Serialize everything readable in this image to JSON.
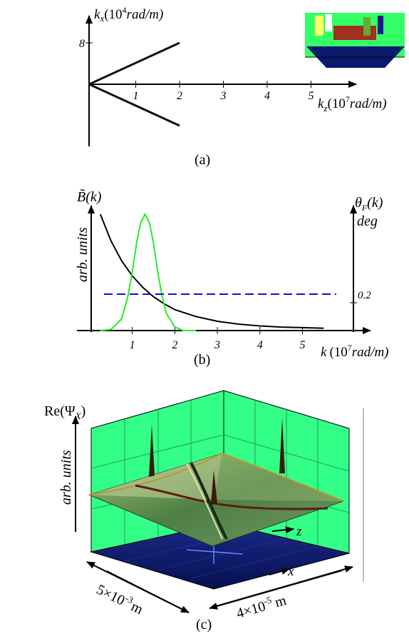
{
  "panel_a": {
    "y_axis_label_k": "k",
    "y_axis_label_sub": "x",
    "y_axis_label_unit_pre": "(10",
    "y_axis_label_exp": "4",
    "y_axis_label_unit_post": "rad/m)",
    "x_axis_label_k": "k",
    "x_axis_label_sub": "z",
    "x_axis_label_unit_pre": "(10",
    "x_axis_label_exp": "7",
    "x_axis_label_unit_post": "rad/m)",
    "y_tick": "8",
    "x_ticks": [
      "1",
      "2",
      "3",
      "4",
      "5"
    ],
    "caption": "(a)"
  },
  "panel_b": {
    "left_label_sym": "B̃(k)",
    "left_unit": "arb. units",
    "right_label_theta": "θ",
    "right_label_sub": "F",
    "right_label_arg": "(k)",
    "right_unit": "deg",
    "right_tick": "0.2",
    "x_ticks": [
      "1",
      "2",
      "3",
      "4",
      "5"
    ],
    "x_axis_label_k": "k",
    "x_axis_label_unit_pre": "(10",
    "x_axis_label_exp": "7",
    "x_axis_label_unit_post": "rad/m)",
    "caption": "(b)"
  },
  "panel_c": {
    "z_axis_label": "Re(Ψ",
    "z_axis_label_sub": "X",
    "z_axis_label_close": ")",
    "z_unit": "arb. units",
    "axis_z": "z",
    "axis_x": "x",
    "dim_left_mantissa": "5×10",
    "dim_left_exp": "-3",
    "dim_left_unit": "m",
    "dim_right_mantissa": "4×10",
    "dim_right_exp": "-5",
    "dim_right_unit": "m",
    "caption": "(c)"
  },
  "colors": {
    "wall": "#33ff88",
    "floor": "#0a1a6e",
    "surface": "#5b8a4a",
    "gaussian": "#22ee22",
    "dashed": "#1010cc"
  },
  "chart_data": [
    {
      "type": "line",
      "title": "",
      "xlabel": "k_z (10^7 rad/m)",
      "ylabel": "k_x (10^4 rad/m)",
      "xlim": [
        0,
        5.5
      ],
      "ylim": [
        -4.5,
        9.5
      ],
      "series": [
        {
          "x": [
            0,
            2
          ],
          "y": [
            0,
            8
          ]
        },
        {
          "x": [
            0,
            2
          ],
          "y": [
            0,
            -6.7
          ]
        }
      ]
    },
    {
      "type": "line",
      "title": "",
      "xlabel": "k (10^7 rad/m)",
      "ylabel": "arb. units",
      "xlim": [
        -0.3,
        6.6
      ],
      "series": [
        {
          "x": [
            0.25,
            0.5,
            0.75,
            1.0,
            1.25,
            1.5,
            1.75,
            2.0,
            2.5,
            3.0,
            3.5,
            4.0,
            4.5,
            5.0,
            5.5
          ],
          "y": [
            1.0,
            0.77,
            0.6,
            0.47,
            0.37,
            0.29,
            0.23,
            0.18,
            0.12,
            0.08,
            0.055,
            0.04,
            0.03,
            0.025,
            0.02
          ]
        },
        {
          "x": [
            0.25,
            0.5,
            0.75,
            0.9,
            1.0,
            1.1,
            1.2,
            1.3,
            1.4,
            1.5,
            1.6,
            1.7,
            1.8,
            2.0,
            2.2,
            2.5
          ],
          "y": [
            0.0,
            0.01,
            0.1,
            0.3,
            0.5,
            0.75,
            0.93,
            1.0,
            0.93,
            0.75,
            0.5,
            0.3,
            0.15,
            0.03,
            0.0,
            0.0
          ]
        },
        {
          "x": [
            0.25,
            5.55
          ],
          "y": [
            0.33,
            0.33
          ]
        }
      ],
      "right_axis_tick": 0.2
    }
  ]
}
